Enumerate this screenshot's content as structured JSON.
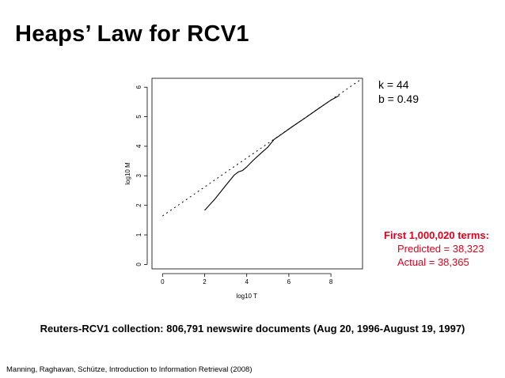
{
  "slide": {
    "title": "Heaps’ Law for RCV1",
    "params": {
      "k": "k = 44",
      "b": "b = 0.49"
    },
    "terms": {
      "heading": "First 1,000,020 terms:",
      "predicted": "Predicted = 38,323",
      "actual": "Actual = 38,365"
    },
    "caption": "Reuters-RCV1 collection: 806,791 newswire documents (Aug 20, 1996-August 19, 1997)",
    "source": "Manning, Raghavan, Schütze, Introduction to Information Retrieval (2008)"
  },
  "chart_data": {
    "type": "line",
    "xlabel": "log10 T",
    "ylabel": "log10 M",
    "xlim": [
      -0.5,
      9.5
    ],
    "ylim": [
      -0.15,
      6.3
    ],
    "x_ticks": [
      0,
      2,
      4,
      6,
      8
    ],
    "y_ticks": [
      0,
      1,
      2,
      3,
      4,
      5,
      6
    ],
    "grid": false,
    "series": [
      {
        "style": "solid",
        "color": "#000000",
        "x": [
          2.0,
          2.5,
          3.0,
          3.4,
          3.6,
          3.8,
          4.0,
          4.3,
          4.7,
          5.0,
          5.3,
          5.7,
          6.2,
          6.8,
          7.4,
          8.0,
          8.4
        ],
        "y": [
          1.83,
          2.22,
          2.67,
          3.02,
          3.13,
          3.18,
          3.3,
          3.52,
          3.78,
          3.97,
          4.23,
          4.43,
          4.68,
          4.97,
          5.27,
          5.56,
          5.72
        ]
      },
      {
        "style": "dotted",
        "color": "#000000",
        "x": [
          0,
          9.4
        ],
        "y": [
          1.64,
          6.25
        ]
      }
    ]
  }
}
